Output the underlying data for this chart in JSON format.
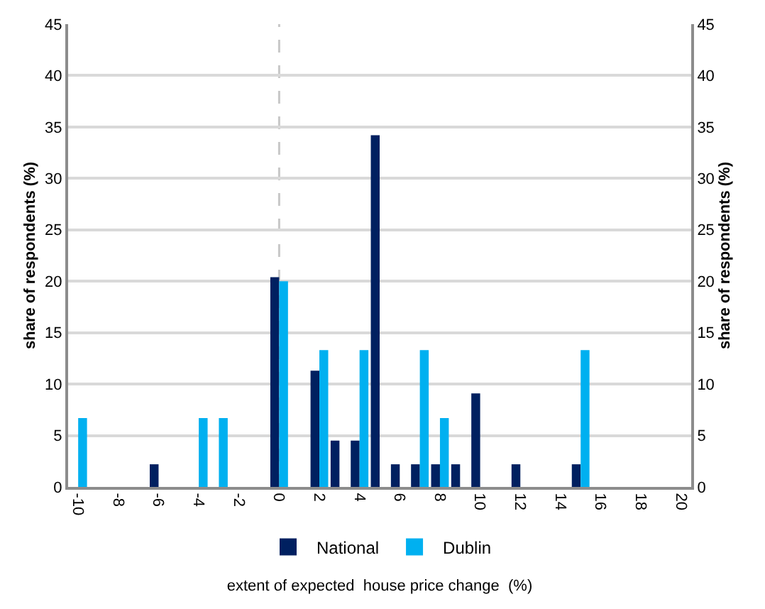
{
  "chart_data": {
    "type": "bar",
    "xlabel": "extent of expected  house price change  (%)",
    "ylabel": "share of respondents (%)",
    "y2label": "share of respondents (%)",
    "x": [
      -10,
      -9,
      -8,
      -7,
      -6,
      -5,
      -4,
      -3,
      -2,
      -1,
      0,
      1,
      2,
      3,
      4,
      5,
      6,
      7,
      8,
      9,
      10,
      11,
      12,
      13,
      14,
      15
    ],
    "series": [
      {
        "name": "National",
        "color": "#002060",
        "values": [
          null,
          null,
          null,
          null,
          2.2,
          null,
          null,
          null,
          null,
          null,
          20.4,
          null,
          11.3,
          4.5,
          4.5,
          34.2,
          2.2,
          2.2,
          2.2,
          2.2,
          9.1,
          null,
          2.2,
          null,
          null,
          2.2
        ]
      },
      {
        "name": "Dublin",
        "color": "#00b0f0",
        "values": [
          6.7,
          null,
          null,
          null,
          null,
          null,
          6.7,
          6.7,
          null,
          null,
          20,
          null,
          13.3,
          null,
          13.3,
          null,
          null,
          13.3,
          6.7,
          null,
          null,
          null,
          null,
          null,
          null,
          13.3
        ]
      }
    ],
    "xlim": [
      -10.5,
      20.5
    ],
    "xticks": [
      -10,
      -8,
      -6,
      -4,
      -2,
      0,
      2,
      4,
      6,
      8,
      10,
      12,
      14,
      16,
      18,
      20
    ],
    "ylim": [
      0,
      45
    ],
    "yticks": [
      0,
      5,
      10,
      15,
      20,
      25,
      30,
      35,
      40,
      45
    ],
    "y2lim": [
      0,
      45
    ],
    "y2ticks": [
      0,
      5,
      10,
      15,
      20,
      25,
      30,
      35,
      40,
      45
    ],
    "ref_lines": [
      {
        "axis": "x",
        "value": 0,
        "color": "#c8c8c8",
        "line_style": "dashed"
      }
    ],
    "grid": "y",
    "legend": "bottom"
  }
}
